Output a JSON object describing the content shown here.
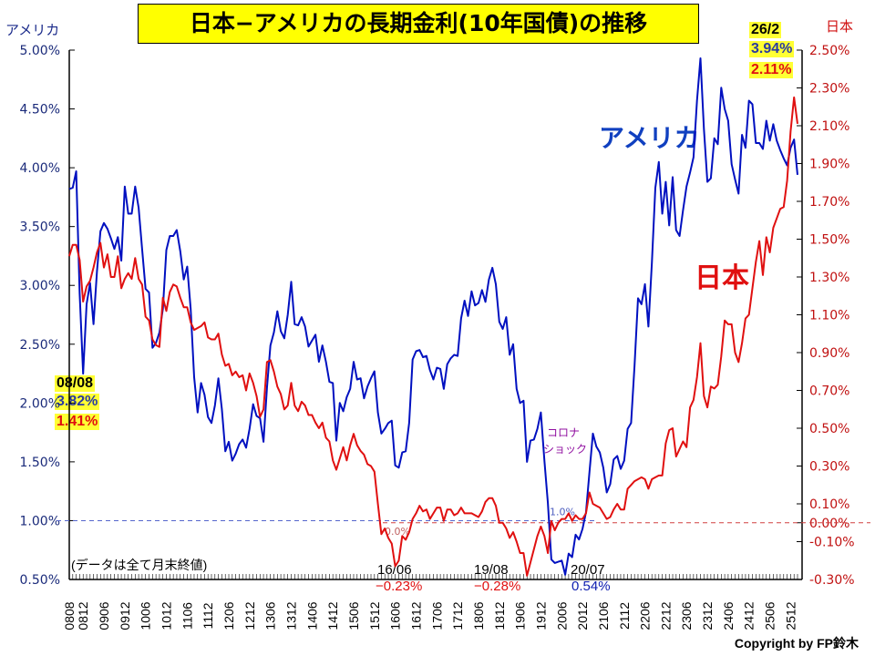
{
  "chart_data": {
    "type": "line",
    "title": "日本−アメリカの長期金利(10年国債)の推移",
    "start_month": "2008-08",
    "end_month": "2026-02",
    "x_tick_labels": [
      "0808",
      "0812",
      "0906",
      "0912",
      "1006",
      "1012",
      "1106",
      "1112",
      "1206",
      "1212",
      "1306",
      "1312",
      "1406",
      "1412",
      "1506",
      "1512",
      "1606",
      "1612",
      "1706",
      "1712",
      "1806",
      "1812",
      "1906",
      "1912",
      "2006",
      "2012",
      "2106",
      "2112",
      "2206",
      "2212",
      "2306",
      "2312",
      "2406",
      "2412",
      "2506",
      "2512"
    ],
    "y_left": {
      "label": "アメリカ",
      "range": [
        0.5,
        5.0
      ],
      "ticks": [
        "0.50%",
        "1.00%",
        "1.50%",
        "2.00%",
        "2.50%",
        "3.00%",
        "3.50%",
        "4.00%",
        "4.50%",
        "5.00%"
      ],
      "tick_values": [
        0.5,
        1.0,
        1.5,
        2.0,
        2.5,
        3.0,
        3.5,
        4.0,
        4.5,
        5.0
      ]
    },
    "y_right": {
      "label": "日本",
      "range": [
        -0.3,
        2.5
      ],
      "ticks": [
        "-0.30%",
        "-0.10%",
        "0.00%",
        "0.10%",
        "0.30%",
        "0.50%",
        "0.70%",
        "0.90%",
        "1.10%",
        "1.30%",
        "1.50%",
        "1.70%",
        "1.90%",
        "2.10%",
        "2.30%",
        "2.50%"
      ],
      "tick_values": [
        -0.3,
        -0.1,
        0.0,
        0.1,
        0.3,
        0.5,
        0.7,
        0.9,
        1.1,
        1.3,
        1.5,
        1.7,
        1.9,
        2.1,
        2.3,
        2.5
      ]
    },
    "reference_lines": [
      {
        "axis": "left",
        "value": 1.0,
        "label": "1.0%"
      },
      {
        "axis": "right",
        "value": 0.0,
        "label": "0.0%"
      }
    ],
    "series": [
      {
        "name": "アメリカ",
        "axis": "left",
        "color": "#0010c0",
        "values": [
          3.82,
          3.83,
          3.97,
          2.93,
          2.25,
          2.84,
          3.02,
          2.67,
          3.12,
          3.46,
          3.53,
          3.48,
          3.4,
          3.31,
          3.41,
          3.21,
          3.84,
          3.61,
          3.61,
          3.84,
          3.66,
          3.31,
          2.97,
          2.94,
          2.47,
          2.51,
          2.6,
          2.8,
          3.3,
          3.42,
          3.42,
          3.47,
          3.29,
          3.05,
          3.16,
          2.8,
          2.22,
          1.92,
          2.17,
          2.07,
          1.88,
          1.83,
          1.98,
          2.21,
          1.95,
          1.59,
          1.67,
          1.51,
          1.57,
          1.65,
          1.69,
          1.62,
          1.78,
          1.99,
          1.89,
          1.87,
          1.67,
          2.13,
          2.49,
          2.6,
          2.78,
          2.61,
          2.55,
          2.75,
          3.03,
          2.67,
          2.66,
          2.73,
          2.65,
          2.48,
          2.53,
          2.58,
          2.35,
          2.49,
          2.35,
          2.18,
          2.17,
          1.68,
          2.0,
          1.93,
          2.05,
          2.12,
          2.35,
          2.2,
          2.21,
          2.04,
          2.14,
          2.21,
          2.27,
          1.92,
          1.74,
          1.78,
          1.83,
          1.85,
          1.47,
          1.45,
          1.58,
          1.59,
          1.83,
          2.37,
          2.44,
          2.45,
          2.39,
          2.4,
          2.28,
          2.2,
          2.3,
          2.29,
          2.12,
          2.33,
          2.38,
          2.41,
          2.4,
          2.72,
          2.87,
          2.74,
          2.95,
          2.83,
          2.85,
          2.96,
          2.86,
          3.05,
          3.15,
          3.01,
          2.69,
          2.63,
          2.73,
          2.41,
          2.5,
          2.12,
          2.0,
          2.02,
          1.5,
          1.68,
          1.69,
          1.78,
          1.92,
          1.51,
          1.15,
          0.67,
          0.64,
          0.65,
          0.66,
          0.54,
          0.72,
          0.69,
          0.88,
          0.84,
          0.93,
          1.07,
          1.41,
          1.74,
          1.63,
          1.58,
          1.45,
          1.24,
          1.31,
          1.52,
          1.55,
          1.44,
          1.51,
          1.78,
          1.83,
          2.32,
          2.89,
          2.84,
          3.01,
          2.65,
          3.19,
          3.83,
          4.05,
          3.61,
          3.88,
          3.51,
          3.92,
          3.47,
          3.42,
          3.64,
          3.84,
          3.96,
          4.09,
          4.57,
          4.93,
          4.33,
          3.88,
          3.91,
          4.25,
          4.2,
          4.68,
          4.5,
          4.4,
          4.03,
          3.9,
          3.78,
          4.28,
          4.17,
          4.57,
          4.54,
          4.21,
          4.21,
          4.16,
          4.4,
          4.23,
          4.37,
          4.23,
          4.15,
          4.08,
          4.02,
          4.17,
          4.24,
          3.94
        ]
      },
      {
        "name": "日本",
        "axis": "right",
        "color": "#e01010",
        "values": [
          1.41,
          1.47,
          1.47,
          1.39,
          1.17,
          1.25,
          1.28,
          1.35,
          1.43,
          1.48,
          1.35,
          1.42,
          1.3,
          1.3,
          1.41,
          1.24,
          1.29,
          1.32,
          1.29,
          1.4,
          1.29,
          1.26,
          1.09,
          1.07,
          0.97,
          0.94,
          0.93,
          1.19,
          1.12,
          1.22,
          1.26,
          1.25,
          1.19,
          1.14,
          1.14,
          1.06,
          1.02,
          1.03,
          1.04,
          1.06,
          0.98,
          0.97,
          0.97,
          1.0,
          0.89,
          0.83,
          0.84,
          0.78,
          0.8,
          0.77,
          0.78,
          0.7,
          0.79,
          0.74,
          0.67,
          0.56,
          0.6,
          0.85,
          0.86,
          0.8,
          0.72,
          0.68,
          0.6,
          0.62,
          0.74,
          0.62,
          0.59,
          0.64,
          0.62,
          0.57,
          0.57,
          0.53,
          0.5,
          0.53,
          0.45,
          0.43,
          0.33,
          0.28,
          0.34,
          0.4,
          0.33,
          0.41,
          0.47,
          0.41,
          0.38,
          0.36,
          0.31,
          0.3,
          0.27,
          0.1,
          -0.06,
          -0.03,
          -0.08,
          -0.11,
          -0.23,
          -0.2,
          -0.07,
          -0.09,
          -0.05,
          0.02,
          0.05,
          0.09,
          0.06,
          0.07,
          0.02,
          0.05,
          0.08,
          0.08,
          0.01,
          0.07,
          0.07,
          0.04,
          0.05,
          0.08,
          0.05,
          0.05,
          0.05,
          0.04,
          0.03,
          0.06,
          0.11,
          0.13,
          0.13,
          0.09,
          0.0,
          0.0,
          -0.03,
          -0.08,
          -0.05,
          -0.1,
          -0.16,
          -0.16,
          -0.28,
          -0.21,
          -0.14,
          -0.07,
          -0.02,
          -0.07,
          -0.16,
          0.01,
          -0.04,
          0.0,
          0.02,
          0.02,
          0.05,
          0.01,
          0.04,
          0.02,
          0.02,
          0.05,
          0.16,
          0.1,
          0.09,
          0.08,
          0.05,
          0.02,
          0.03,
          0.07,
          0.1,
          0.07,
          0.07,
          0.18,
          0.2,
          0.22,
          0.23,
          0.24,
          0.23,
          0.18,
          0.23,
          0.24,
          0.25,
          0.25,
          0.42,
          0.49,
          0.5,
          0.35,
          0.39,
          0.43,
          0.4,
          0.61,
          0.65,
          0.77,
          0.95,
          0.67,
          0.61,
          0.72,
          0.71,
          0.73,
          0.88,
          1.07,
          1.05,
          1.05,
          0.9,
          0.85,
          0.95,
          1.08,
          1.1,
          1.24,
          1.38,
          1.49,
          1.31,
          1.51,
          1.43,
          1.56,
          1.61,
          1.66,
          1.67,
          1.81,
          2.07,
          2.25,
          2.11
        ]
      }
    ],
    "annotations": {
      "start": {
        "date": "08/08",
        "us": "3.82%",
        "jp": "1.41%"
      },
      "end": {
        "date": "26/2",
        "us": "3.94%",
        "jp": "2.11%"
      },
      "jp_low_2016": {
        "date": "16/06",
        "value": "−0.23%"
      },
      "jp_low_2019": {
        "date": "19/08",
        "value": "−0.28%"
      },
      "us_low_2020": {
        "date": "20/07",
        "value": "0.54%"
      },
      "covid": [
        "コロナ",
        "ショック"
      ],
      "us_series_label": "アメリカ",
      "jp_series_label": "日本",
      "note": "(データは全て月末終値)"
    }
  },
  "footer": {
    "copyright": "Copyright by FP鈴木"
  }
}
